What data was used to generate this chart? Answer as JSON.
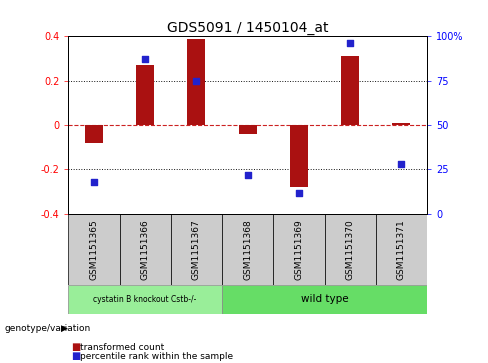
{
  "title": "GDS5091 / 1450104_at",
  "samples": [
    "GSM1151365",
    "GSM1151366",
    "GSM1151367",
    "GSM1151368",
    "GSM1151369",
    "GSM1151370",
    "GSM1151371"
  ],
  "transformed_counts": [
    -0.08,
    0.27,
    0.39,
    -0.04,
    -0.28,
    0.31,
    0.01
  ],
  "percentile_pct": [
    18,
    87,
    75,
    22,
    12,
    96,
    28
  ],
  "ylim_left": [
    -0.4,
    0.4
  ],
  "ylim_right": [
    0,
    100
  ],
  "yticks_left": [
    -0.4,
    -0.2,
    0.0,
    0.2,
    0.4
  ],
  "ytick_labels_left": [
    "-0.4",
    "-0.2",
    "0",
    "0.2",
    "0.4"
  ],
  "yticks_right": [
    0,
    25,
    50,
    75,
    100
  ],
  "ytick_labels_right": [
    "0",
    "25",
    "50",
    "75",
    "100%"
  ],
  "bar_color": "#aa1111",
  "dot_color": "#2222cc",
  "zero_line_color": "#cc2222",
  "grid_line_color": "#111111",
  "bg_color": "#ffffff",
  "group1_label": "cystatin B knockout Cstb-/-",
  "group2_label": "wild type",
  "group1_indices": [
    0,
    1,
    2
  ],
  "group2_indices": [
    3,
    4,
    5,
    6
  ],
  "group1_color": "#99ee99",
  "group2_color": "#66dd66",
  "genotype_label": "genotype/variation",
  "legend_bar_label": "transformed count",
  "legend_dot_label": "percentile rank within the sample",
  "sample_bg_color": "#cccccc",
  "bar_width": 0.35,
  "title_fontsize": 10,
  "tick_fontsize": 7,
  "sample_label_fontsize": 6.5
}
